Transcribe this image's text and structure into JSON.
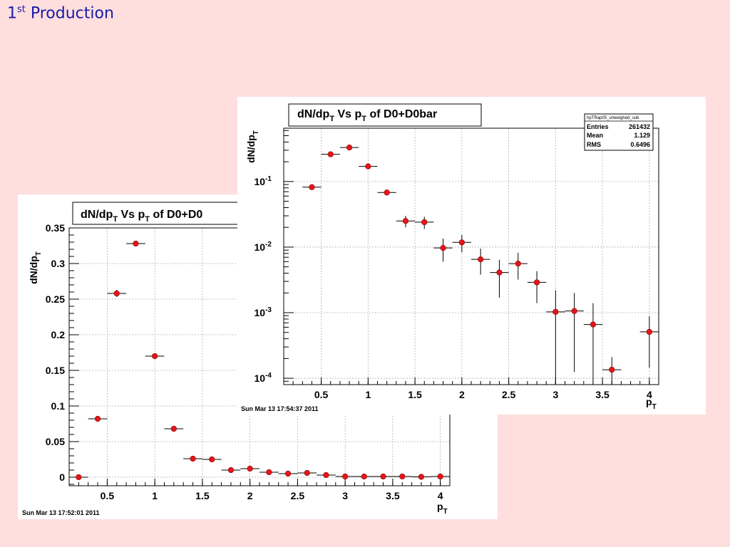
{
  "slide": {
    "title_main": "1",
    "title_sup": "st",
    "title_rest": " Production"
  },
  "chart_data": [
    {
      "type": "scatter",
      "title": "dN/dp_T Vs p_T of D0+D0bar",
      "title_visible": "dN/dpT Vs pT of D0+D0",
      "xlabel": "p_T",
      "ylabel": "dN/dp_T",
      "yscale": "linear",
      "xlim": [
        0.1,
        4.1
      ],
      "ylim": [
        -0.012,
        0.35
      ],
      "xticks": [
        0.5,
        1,
        1.5,
        2,
        2.5,
        3,
        3.5,
        4
      ],
      "xtick_labels": [
        "0.5",
        "1",
        "1.5",
        "2",
        "2.5",
        "3",
        "3.5",
        "4"
      ],
      "yticks": [
        0,
        0.05,
        0.1,
        0.15,
        0.2,
        0.25,
        0.3,
        0.35
      ],
      "ytick_labels": [
        "0",
        "0.05",
        "0.1",
        "0.15",
        "0.2",
        "0.25",
        "0.3",
        "0.35"
      ],
      "grid": true,
      "bin_halfwidth": 0.1,
      "x": [
        0.2,
        0.4,
        0.6,
        0.8,
        1.0,
        1.2,
        1.4,
        1.6,
        1.8,
        2.0,
        2.2,
        2.4,
        2.6,
        2.8,
        3.0,
        3.2,
        3.4,
        3.6,
        3.8,
        4.0
      ],
      "y": [
        0.0,
        0.082,
        0.258,
        0.328,
        0.17,
        0.068,
        0.026,
        0.025,
        0.01,
        0.012,
        0.007,
        0.005,
        0.006,
        0.003,
        0.001,
        0.001,
        0.001,
        0.001,
        0.0005,
        0.001
      ],
      "yerr": [
        0.001,
        0.003,
        0.005,
        0.004,
        0.003,
        0.002,
        0.003,
        0.003,
        0.002,
        0.002,
        0.002,
        0.002,
        0.002,
        0.001,
        0.001,
        0.001,
        0.001,
        0.001,
        0.001,
        0.001
      ],
      "timestamp": "Sun Mar 13 17:52:01 2011"
    },
    {
      "type": "scatter",
      "title": "dN/dp_T Vs p_T of D0+D0bar",
      "xlabel": "p_T",
      "ylabel": "dN/dp_T",
      "yscale": "log",
      "xlim": [
        0.1,
        4.1
      ],
      "ylim": [
        8e-05,
        0.65
      ],
      "xticks": [
        0.5,
        1,
        1.5,
        2,
        2.5,
        3,
        3.5,
        4
      ],
      "xtick_labels": [
        "0.5",
        "1",
        "1.5",
        "2",
        "2.5",
        "3",
        "3.5",
        "4"
      ],
      "yticks": [
        0.0001,
        0.001,
        0.01,
        0.1
      ],
      "ytick_labels": [
        [
          "10",
          "-4"
        ],
        [
          "10",
          "-3"
        ],
        [
          "10",
          "-2"
        ],
        [
          "10",
          "-1"
        ]
      ],
      "grid": true,
      "bin_halfwidth": 0.1,
      "x": [
        0.4,
        0.6,
        0.8,
        1.0,
        1.2,
        1.4,
        1.6,
        1.8,
        2.0,
        2.2,
        2.4,
        2.6,
        2.8,
        3.0,
        3.2,
        3.4,
        3.6,
        4.0
      ],
      "y": [
        0.082,
        0.26,
        0.33,
        0.17,
        0.068,
        0.025,
        0.024,
        0.0097,
        0.0118,
        0.0065,
        0.0041,
        0.0056,
        0.0029,
        0.00103,
        0.00106,
        0.00066,
        0.000135,
        0.00051
      ],
      "y_low": [
        0.078,
        0.25,
        0.32,
        0.163,
        0.065,
        0.02,
        0.019,
        0.006,
        0.0083,
        0.0038,
        0.0017,
        0.0032,
        0.0014,
        6e-05,
        0.000125,
        6e-05,
        6e-05,
        0.000145
      ],
      "y_high": [
        0.086,
        0.27,
        0.34,
        0.177,
        0.071,
        0.03,
        0.029,
        0.0135,
        0.0153,
        0.0095,
        0.0064,
        0.0082,
        0.0043,
        0.0022,
        0.002,
        0.0014,
        0.00021,
        0.00088
      ],
      "timestamp": "Sun Mar 13 17:54:37 2011",
      "stats": {
        "name": "hpTRap05_unweighed_sub",
        "rows": [
          {
            "label": "Entries",
            "value": "261432"
          },
          {
            "label": "Mean",
            "value": "1.129"
          },
          {
            "label": "RMS",
            "value": "0.6496"
          }
        ]
      }
    }
  ]
}
